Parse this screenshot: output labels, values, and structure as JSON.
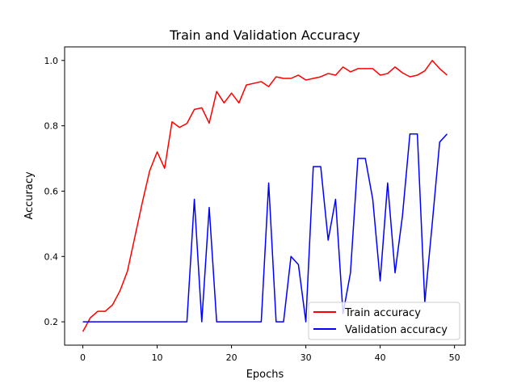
{
  "chart_data": {
    "type": "line",
    "title": "Train and Validation Accuracy",
    "xlabel": "Epochs",
    "ylabel": "Accuracy",
    "xlim": [
      -2.45,
      51.45
    ],
    "ylim": [
      0.1285,
      1.0415
    ],
    "xticks": [
      0,
      10,
      20,
      30,
      40,
      50
    ],
    "xtick_labels": [
      "0",
      "10",
      "20",
      "30",
      "40",
      "50"
    ],
    "yticks": [
      0.2,
      0.4,
      0.6,
      0.8,
      1.0
    ],
    "ytick_labels": [
      "0.2",
      "0.4",
      "0.6",
      "0.8",
      "1.0"
    ],
    "grid": false,
    "legend_position": "lower right",
    "x": [
      0,
      1,
      2,
      3,
      4,
      5,
      6,
      7,
      8,
      9,
      10,
      11,
      12,
      13,
      14,
      15,
      16,
      17,
      18,
      19,
      20,
      21,
      22,
      23,
      24,
      25,
      26,
      27,
      28,
      29,
      30,
      31,
      32,
      33,
      34,
      35,
      36,
      37,
      38,
      39,
      40,
      41,
      42,
      43,
      44,
      45,
      46,
      47,
      48,
      49
    ],
    "series": [
      {
        "name": "Train accuracy",
        "color": "#ff0000",
        "values": [
          0.17,
          0.212,
          0.232,
          0.232,
          0.252,
          0.295,
          0.355,
          0.46,
          0.565,
          0.663,
          0.72,
          0.67,
          0.812,
          0.795,
          0.807,
          0.85,
          0.855,
          0.808,
          0.905,
          0.87,
          0.9,
          0.87,
          0.925,
          0.93,
          0.935,
          0.92,
          0.95,
          0.945,
          0.945,
          0.955,
          0.94,
          0.945,
          0.95,
          0.96,
          0.955,
          0.98,
          0.965,
          0.975,
          0.975,
          0.975,
          0.955,
          0.96,
          0.98,
          0.962,
          0.95,
          0.955,
          0.968,
          1.0,
          0.975,
          0.955
        ]
      },
      {
        "name": "Validation accuracy",
        "color": "#0000ff",
        "values": [
          0.2,
          0.2,
          0.2,
          0.2,
          0.2,
          0.2,
          0.2,
          0.2,
          0.2,
          0.2,
          0.2,
          0.2,
          0.2,
          0.2,
          0.2,
          0.575,
          0.2,
          0.55,
          0.2,
          0.2,
          0.2,
          0.2,
          0.2,
          0.2,
          0.2,
          0.625,
          0.2,
          0.2,
          0.4,
          0.375,
          0.2,
          0.675,
          0.675,
          0.45,
          0.575,
          0.225,
          0.35,
          0.7,
          0.7,
          0.575,
          0.325,
          0.625,
          0.35,
          0.525,
          0.775,
          0.775,
          0.26,
          0.5,
          0.75,
          0.775
        ]
      }
    ]
  }
}
